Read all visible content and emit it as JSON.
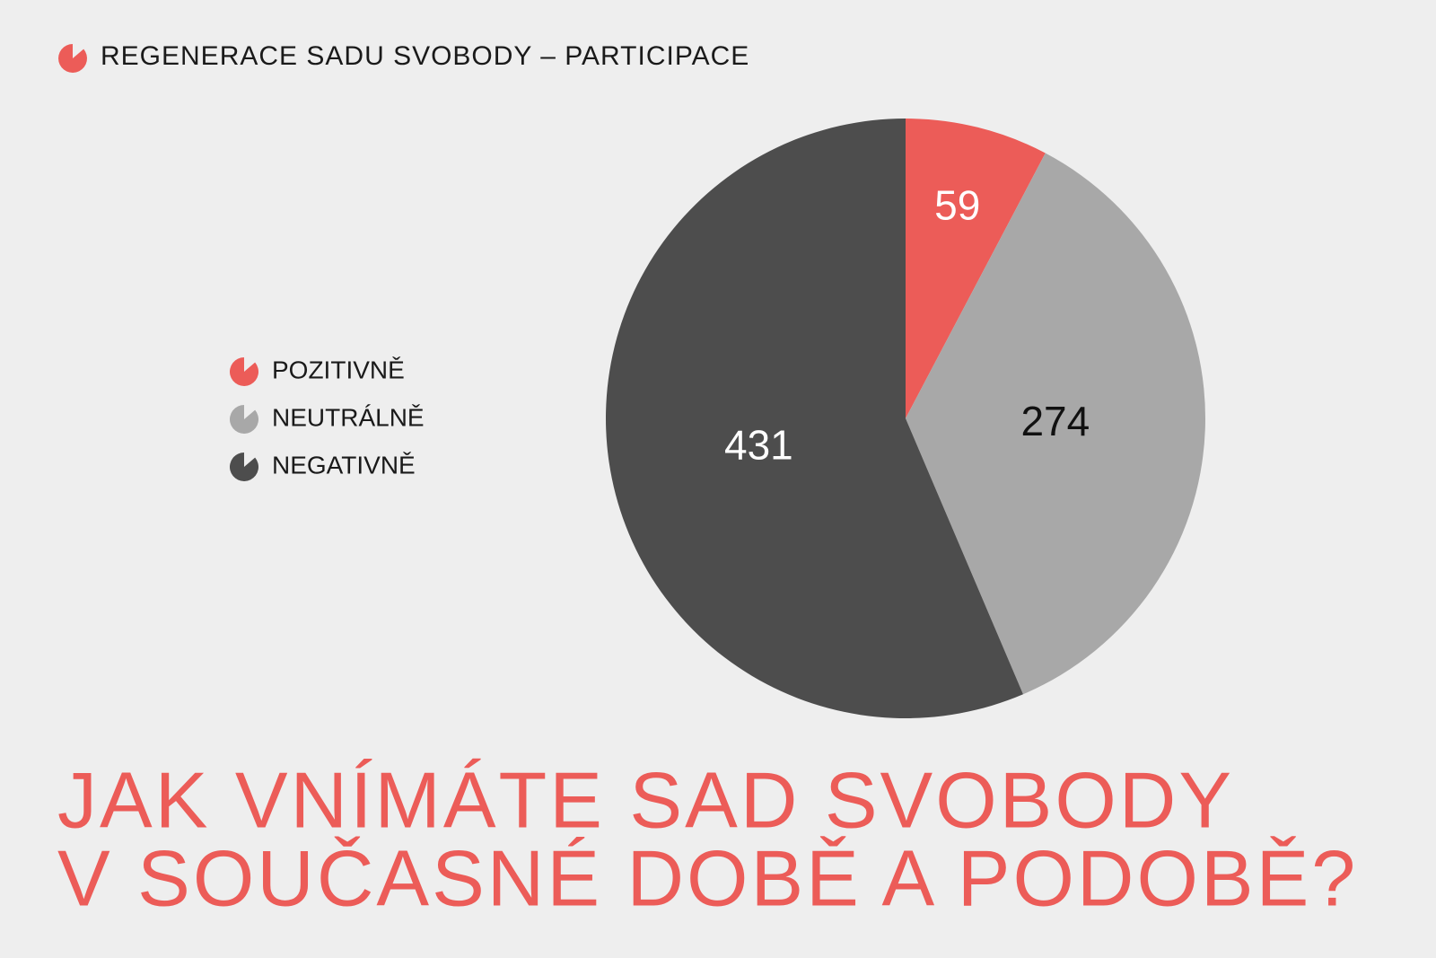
{
  "chart_data": {
    "type": "pie",
    "header": "REGENERACE SADU SVOBODY – PARTICIPACE",
    "title": [
      "JAK VNÍMÁTE SAD SVOBODY",
      "V SOUČASNÉ DOBĚ A PODOBĚ?"
    ],
    "categories": [
      "POZITIVNĚ",
      "NEUTRÁLNĚ",
      "NEGATIVNĚ"
    ],
    "values": [
      59,
      274,
      431
    ],
    "colors": [
      "#ec5c58",
      "#a8a8a8",
      "#4d4d4d"
    ],
    "label_colors": [
      "#ffffff",
      "#111111",
      "#ffffff"
    ],
    "header_color": "#ec5c58",
    "title_color": "#ec5c58"
  }
}
